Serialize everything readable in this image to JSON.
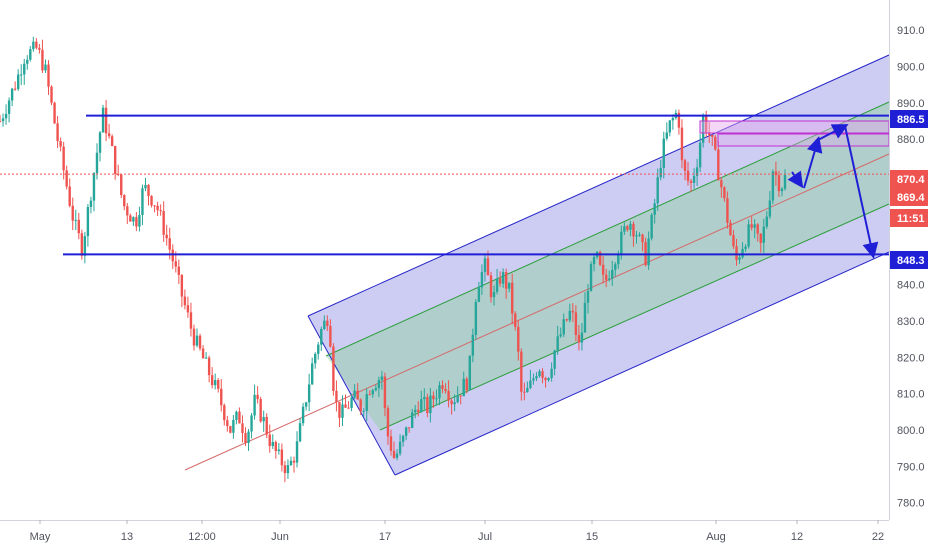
{
  "chart_data": {
    "type": "candlestick",
    "x_ticks": [
      "May",
      "13",
      "12:00",
      "Jun",
      "17",
      "Jul",
      "15",
      "Aug",
      "12",
      "22"
    ],
    "y_ticks": [
      780.0,
      790.0,
      800.0,
      810.0,
      820.0,
      830.0,
      840.0,
      880.0,
      890.0,
      900.0,
      910.0
    ],
    "ylim": [
      775,
      913
    ],
    "price_tags": [
      {
        "label": "886.5",
        "value": 886.5,
        "color": "#1f1fd6"
      },
      {
        "label": "870.4",
        "value": 870.4,
        "color": "#ef5350"
      },
      {
        "label": "869.4",
        "value": 869.4,
        "color": "#ef5350"
      },
      {
        "label": "11:51",
        "value": 865.0,
        "color": "#ef5350"
      },
      {
        "label": "848.3",
        "value": 848.3,
        "color": "#1f1fd6"
      }
    ],
    "price_path": [
      [
        0.0,
        885
      ],
      [
        2.0,
        896
      ],
      [
        3.0,
        903
      ],
      [
        4.5,
        905
      ],
      [
        5.5,
        899
      ],
      [
        7.0,
        880
      ],
      [
        9.0,
        857
      ],
      [
        10.0,
        850
      ],
      [
        11.5,
        872
      ],
      [
        12.5,
        887
      ],
      [
        13.5,
        878
      ],
      [
        15.0,
        862
      ],
      [
        16.5,
        857
      ],
      [
        17.5,
        867
      ],
      [
        19.0,
        862
      ],
      [
        20.0,
        855
      ],
      [
        21.0,
        847
      ],
      [
        22.0,
        838
      ],
      [
        23.5,
        826
      ],
      [
        25.0,
        818
      ],
      [
        26.5,
        810
      ],
      [
        28.0,
        800
      ],
      [
        29.0,
        804
      ],
      [
        30.0,
        798
      ],
      [
        31.0,
        808
      ],
      [
        32.0,
        803
      ],
      [
        33.0,
        796
      ],
      [
        34.0,
        792
      ],
      [
        35.0,
        789
      ],
      [
        36.0,
        794
      ],
      [
        37.0,
        806
      ],
      [
        38.0,
        818
      ],
      [
        39.0,
        827
      ],
      [
        40.0,
        832
      ],
      [
        40.7,
        808
      ],
      [
        41.5,
        804
      ],
      [
        43.0,
        809
      ],
      [
        44.0,
        806
      ],
      [
        45.0,
        812
      ],
      [
        46.5,
        815
      ],
      [
        47.0,
        800
      ],
      [
        48.0,
        792
      ],
      [
        49.0,
        797
      ],
      [
        50.0,
        803
      ],
      [
        51.0,
        808
      ],
      [
        52.0,
        806
      ],
      [
        53.0,
        810
      ],
      [
        54.0,
        814
      ],
      [
        55.0,
        808
      ],
      [
        56.0,
        811
      ],
      [
        57.0,
        814
      ],
      [
        58.0,
        840
      ],
      [
        59.0,
        845
      ],
      [
        60.0,
        836
      ],
      [
        61.0,
        843
      ],
      [
        62.0,
        838
      ],
      [
        63.0,
        822
      ],
      [
        63.5,
        808
      ],
      [
        64.5,
        812
      ],
      [
        65.5,
        818
      ],
      [
        66.5,
        814
      ],
      [
        67.5,
        822
      ],
      [
        68.5,
        828
      ],
      [
        69.5,
        833
      ],
      [
        70.5,
        822
      ],
      [
        71.5,
        840
      ],
      [
        72.5,
        848
      ],
      [
        73.5,
        840
      ],
      [
        74.5,
        846
      ],
      [
        75.5,
        852
      ],
      [
        76.5,
        858
      ],
      [
        77.5,
        854
      ],
      [
        78.5,
        847
      ],
      [
        79.5,
        860
      ],
      [
        80.5,
        876
      ],
      [
        81.5,
        884
      ],
      [
        82.5,
        888
      ],
      [
        83.0,
        872
      ],
      [
        84.0,
        867
      ],
      [
        85.0,
        876
      ],
      [
        85.5,
        886
      ],
      [
        86.5,
        880
      ],
      [
        87.5,
        870
      ],
      [
        88.5,
        858
      ],
      [
        89.5,
        846
      ],
      [
        90.5,
        852
      ],
      [
        91.5,
        856
      ],
      [
        92.5,
        850
      ],
      [
        93.5,
        862
      ],
      [
        94.0,
        872
      ],
      [
        95.0,
        867
      ],
      [
        95.5,
        869.4
      ]
    ],
    "trendlines": {
      "support_level": 848.3,
      "resistance_level": 886.5
    }
  }
}
